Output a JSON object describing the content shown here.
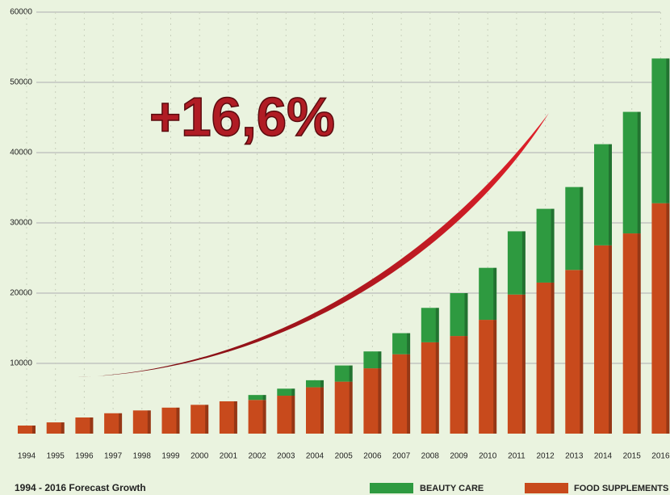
{
  "chart_data": {
    "type": "stacked_bar",
    "title": "1994 - 2016 Forecast Growth",
    "annotation": "+16,6%",
    "categories": [
      "1994",
      "1995",
      "1996",
      "1997",
      "1998",
      "1999",
      "2000",
      "2001",
      "2002",
      "2003",
      "2004",
      "2005",
      "2006",
      "2007",
      "2008",
      "2009",
      "2010",
      "2011",
      "2012",
      "2013",
      "2014",
      "2015",
      "2016"
    ],
    "series": [
      {
        "name": "FOOD SUPPLEMENTS",
        "color": "#c84a1c",
        "values": [
          1150,
          1600,
          2300,
          2900,
          3300,
          3700,
          4100,
          4600,
          4800,
          5400,
          6600,
          7400,
          9300,
          11300,
          13000,
          13900,
          16200,
          19800,
          21500,
          23300,
          26800,
          28500,
          32800
        ]
      },
      {
        "name": "BEAUTY CARE",
        "color": "#2e9a40",
        "values": [
          0,
          0,
          0,
          0,
          0,
          0,
          0,
          0,
          700,
          1000,
          1000,
          2300,
          2400,
          3000,
          4900,
          6100,
          7400,
          9000,
          10500,
          11800,
          14400,
          17300,
          20600
        ]
      }
    ],
    "ylim": [
      0,
      60000
    ],
    "yticks": [
      10000,
      20000,
      30000,
      40000,
      50000,
      60000
    ],
    "grid": true
  }
}
